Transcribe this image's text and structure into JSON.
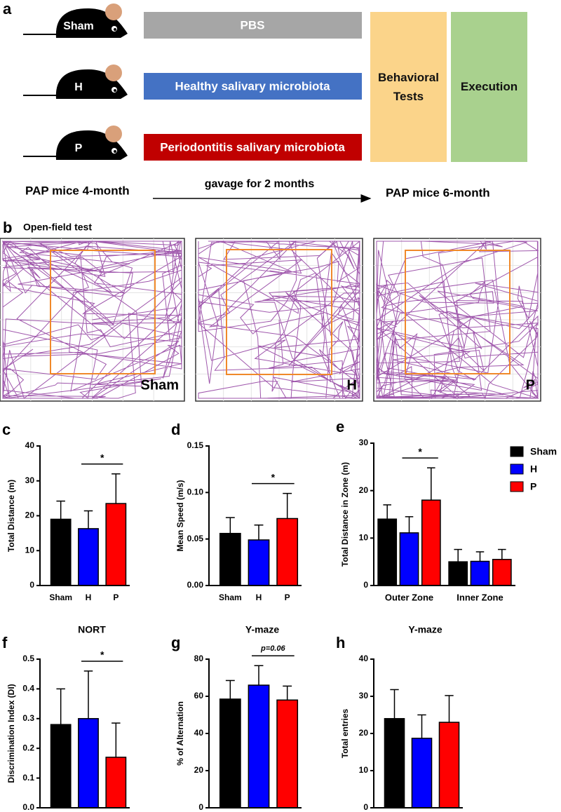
{
  "panel_a": {
    "label": "a",
    "groups": [
      {
        "mouse": "Sham",
        "treatment": "PBS",
        "color": "#a6a6a6"
      },
      {
        "mouse": "H",
        "treatment": "Healthy salivary microbiota",
        "color": "#4472c4"
      },
      {
        "mouse": "P",
        "treatment": "Periodontitis salivary microbiota",
        "color": "#c00000"
      }
    ],
    "stages": [
      {
        "label": "Behavioral Tests",
        "color": "#fbd48a"
      },
      {
        "label": "Execution",
        "color": "#a9d18e"
      }
    ],
    "timeline": {
      "start": "PAP mice 4-month",
      "arrow": "gavage for 2 months",
      "end": "PAP mice 6-month"
    }
  },
  "panel_b": {
    "label": "b",
    "title": "Open-field test",
    "arenas": [
      "Sham",
      "H",
      "P"
    ]
  },
  "chart_data": [
    {
      "type": "bar",
      "label": "c",
      "ylabel": "Total Distance (m)",
      "categories": [
        "Sham",
        "H",
        "P"
      ],
      "values": [
        19,
        16.3,
        23.5
      ],
      "errors": [
        5.2,
        5.1,
        8.5
      ],
      "colors": [
        "#000000",
        "#0000ff",
        "#ff0000"
      ],
      "ylim": [
        0,
        40
      ],
      "yticks": [
        0,
        10,
        20,
        30,
        40
      ],
      "significance": [
        {
          "between": [
            "H",
            "P"
          ],
          "label": "*"
        }
      ]
    },
    {
      "type": "bar",
      "label": "d",
      "ylabel": "Mean Speed (m/s)",
      "categories": [
        "Sham",
        "H",
        "P"
      ],
      "values": [
        0.056,
        0.049,
        0.072
      ],
      "errors": [
        0.017,
        0.016,
        0.027
      ],
      "colors": [
        "#000000",
        "#0000ff",
        "#ff0000"
      ],
      "ylim": [
        0,
        0.15
      ],
      "yticks": [
        {
          "value": 0,
          "label": "0.00"
        },
        {
          "value": 0.05,
          "label": "0.05"
        },
        {
          "value": 0.1,
          "label": "0.10"
        },
        {
          "value": 0.15,
          "label": "0.15"
        }
      ],
      "significance": [
        {
          "between": [
            "H",
            "P"
          ],
          "label": "*"
        }
      ]
    },
    {
      "type": "bar",
      "label": "e",
      "ylabel": "Total Distance in Zone (m)",
      "categories": [
        "Outer Zone",
        "Inner Zone"
      ],
      "series": [
        {
          "name": "Sham",
          "color": "#000000",
          "values": [
            14,
            5
          ],
          "errors": [
            3,
            2.6
          ]
        },
        {
          "name": "H",
          "color": "#0000ff",
          "values": [
            11.1,
            5.1
          ],
          "errors": [
            3.4,
            2
          ]
        },
        {
          "name": "P",
          "color": "#ff0000",
          "values": [
            18,
            5.5
          ],
          "errors": [
            6.8,
            2.1
          ]
        }
      ],
      "ylim": [
        0,
        30
      ],
      "yticks": [
        0,
        10,
        20,
        30
      ],
      "significance": [
        {
          "category": "Outer Zone",
          "between": [
            "H",
            "P"
          ],
          "label": "*"
        }
      ]
    },
    {
      "type": "bar",
      "label": "f",
      "title": "NORT",
      "ylabel": "Discrimination Index (DI)",
      "categories": [
        "Sham",
        "H",
        "P"
      ],
      "values": [
        0.28,
        0.3,
        0.17
      ],
      "errors": [
        0.12,
        0.16,
        0.115
      ],
      "colors": [
        "#000000",
        "#0000ff",
        "#ff0000"
      ],
      "ylim": [
        0,
        0.5
      ],
      "yticks": [
        {
          "value": 0,
          "label": "0.0"
        },
        0.1,
        0.2,
        0.3,
        0.4,
        0.5
      ],
      "significance": [
        {
          "between": [
            "H",
            "P"
          ],
          "label": "*"
        }
      ]
    },
    {
      "type": "bar",
      "label": "g",
      "title": "Y-maze",
      "ylabel": "% of Alternation",
      "categories": [
        "Sham",
        "H",
        "P"
      ],
      "values": [
        58.5,
        66,
        58
      ],
      "errors": [
        10,
        10.5,
        7.5
      ],
      "colors": [
        "#000000",
        "#0000ff",
        "#ff0000"
      ],
      "ylim": [
        0,
        80
      ],
      "yticks": [
        0,
        20,
        40,
        60,
        80
      ],
      "significance": [
        {
          "between": [
            "H",
            "P"
          ],
          "label": "p=0.06"
        }
      ]
    },
    {
      "type": "bar",
      "label": "h",
      "title": "Y-maze",
      "ylabel": "Total entries",
      "categories": [
        "Sham",
        "H",
        "P"
      ],
      "values": [
        24,
        18.7,
        23
      ],
      "errors": [
        7.8,
        6.3,
        7.2
      ],
      "colors": [
        "#000000",
        "#0000ff",
        "#ff0000"
      ],
      "ylim": [
        0,
        40
      ],
      "yticks": [
        0,
        10,
        20,
        30,
        40
      ]
    }
  ]
}
